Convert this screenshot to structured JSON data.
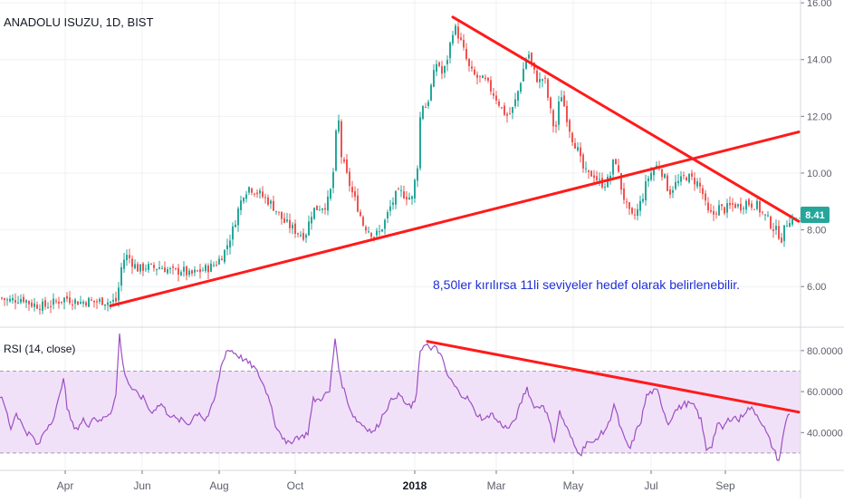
{
  "chart_data": [
    {
      "type": "candlestick",
      "symbol_title": "ANADOLU ISUZU, 1D, BIST",
      "ylim": [
        4.6,
        16.1
      ],
      "y_ticks": [
        "16.00",
        "14.00",
        "12.00",
        "10.00",
        "8.00",
        "6.00"
      ],
      "y_tick_values": [
        16,
        14,
        12,
        10,
        8,
        6
      ],
      "last_price_label": "8.41",
      "last_price": 8.41,
      "annotation": "8,50ler kırılırsa 11li seviyeler hedef olarak belirlenebilir.",
      "grid": true,
      "price_path": [
        [
          0,
          5.6
        ],
        [
          8,
          5.5
        ],
        [
          16,
          5.55
        ],
        [
          24,
          5.6
        ],
        [
          32,
          5.4
        ],
        [
          40,
          5.35
        ],
        [
          48,
          5.3
        ],
        [
          56,
          5.4
        ],
        [
          64,
          5.5
        ],
        [
          72,
          5.6
        ],
        [
          80,
          5.5
        ],
        [
          88,
          5.45
        ],
        [
          96,
          5.5
        ],
        [
          104,
          5.45
        ],
        [
          112,
          5.5
        ],
        [
          120,
          5.45
        ],
        [
          128,
          5.5
        ],
        [
          134,
          6.9
        ],
        [
          140,
          7.1
        ],
        [
          146,
          6.8
        ],
        [
          152,
          6.6
        ],
        [
          160,
          6.7
        ],
        [
          168,
          6.65
        ],
        [
          176,
          6.7
        ],
        [
          184,
          6.6
        ],
        [
          192,
          6.5
        ],
        [
          200,
          6.6
        ],
        [
          208,
          6.4
        ],
        [
          216,
          6.5
        ],
        [
          224,
          6.6
        ],
        [
          232,
          6.7
        ],
        [
          240,
          6.9
        ],
        [
          248,
          7.3
        ],
        [
          256,
          8.0
        ],
        [
          262,
          8.7
        ],
        [
          268,
          9.3
        ],
        [
          274,
          9.5
        ],
        [
          280,
          9.4
        ],
        [
          288,
          9.2
        ],
        [
          296,
          9.0
        ],
        [
          304,
          8.7
        ],
        [
          312,
          8.3
        ],
        [
          320,
          8.1
        ],
        [
          328,
          7.9
        ],
        [
          336,
          7.8
        ],
        [
          344,
          8.7
        ],
        [
          352,
          8.8
        ],
        [
          360,
          8.9
        ],
        [
          366,
          9.6
        ],
        [
          372,
          12.2
        ],
        [
          376,
          10.6
        ],
        [
          382,
          9.9
        ],
        [
          388,
          9.3
        ],
        [
          394,
          8.8
        ],
        [
          400,
          8.2
        ],
        [
          406,
          8.0
        ],
        [
          412,
          7.8
        ],
        [
          418,
          7.9
        ],
        [
          424,
          8.3
        ],
        [
          430,
          8.8
        ],
        [
          436,
          9.2
        ],
        [
          442,
          9.3
        ],
        [
          448,
          9.2
        ],
        [
          454,
          9.1
        ],
        [
          460,
          10.3
        ],
        [
          464,
          12.5
        ],
        [
          470,
          12.3
        ],
        [
          476,
          13.2
        ],
        [
          482,
          14.0
        ],
        [
          488,
          13.4
        ],
        [
          494,
          14.2
        ],
        [
          500,
          15.2
        ],
        [
          506,
          14.8
        ],
        [
          512,
          14.2
        ],
        [
          518,
          13.6
        ],
        [
          524,
          13.4
        ],
        [
          530,
          13.3
        ],
        [
          536,
          13.2
        ],
        [
          542,
          12.9
        ],
        [
          548,
          12.6
        ],
        [
          554,
          12.2
        ],
        [
          560,
          12.0
        ],
        [
          566,
          12.3
        ],
        [
          572,
          13.0
        ],
        [
          578,
          13.8
        ],
        [
          582,
          14.3
        ],
        [
          588,
          13.6
        ],
        [
          594,
          13.2
        ],
        [
          600,
          13.4
        ],
        [
          606,
          12.3
        ],
        [
          612,
          11.4
        ],
        [
          618,
          12.9
        ],
        [
          624,
          12.1
        ],
        [
          630,
          11.3
        ],
        [
          636,
          10.9
        ],
        [
          642,
          10.2
        ],
        [
          648,
          9.9
        ],
        [
          654,
          10.0
        ],
        [
          660,
          9.7
        ],
        [
          666,
          9.6
        ],
        [
          672,
          9.8
        ],
        [
          678,
          10.6
        ],
        [
          684,
          9.6
        ],
        [
          690,
          8.9
        ],
        [
          696,
          8.4
        ],
        [
          702,
          8.6
        ],
        [
          708,
          9.1
        ],
        [
          714,
          9.8
        ],
        [
          720,
          10.1
        ],
        [
          726,
          10.3
        ],
        [
          732,
          9.9
        ],
        [
          738,
          9.3
        ],
        [
          744,
          9.6
        ],
        [
          750,
          9.7
        ],
        [
          756,
          9.9
        ],
        [
          762,
          9.8
        ],
        [
          768,
          9.7
        ],
        [
          774,
          9.4
        ],
        [
          780,
          8.6
        ],
        [
          786,
          8.5
        ],
        [
          792,
          8.8
        ],
        [
          798,
          8.7
        ],
        [
          804,
          8.8
        ],
        [
          810,
          8.9
        ],
        [
          816,
          8.8
        ],
        [
          822,
          9.0
        ],
        [
          828,
          8.9
        ],
        [
          834,
          8.9
        ],
        [
          840,
          8.6
        ],
        [
          846,
          8.4
        ],
        [
          852,
          8.1
        ],
        [
          858,
          7.9
        ],
        [
          862,
          7.7
        ],
        [
          866,
          8.1
        ],
        [
          870,
          8.4
        ],
        [
          874,
          8.41
        ]
      ],
      "trendlines": [
        {
          "from": [
            122,
            5.32
          ],
          "to": [
            882,
            11.45
          ]
        },
        {
          "from": [
            500,
            15.5
          ],
          "to": [
            882,
            8.3
          ]
        }
      ]
    },
    {
      "type": "line",
      "indicator_title": "RSI (14, close)",
      "ylim": [
        22,
        91
      ],
      "y_ticks": [
        "80.0000",
        "60.0000",
        "40.0000"
      ],
      "y_tick_values": [
        80,
        60,
        40
      ],
      "band": [
        30,
        70
      ],
      "rsi_path": [
        [
          0,
          58
        ],
        [
          6,
          52
        ],
        [
          12,
          42
        ],
        [
          18,
          50
        ],
        [
          24,
          44
        ],
        [
          30,
          40
        ],
        [
          36,
          38
        ],
        [
          42,
          33
        ],
        [
          48,
          40
        ],
        [
          54,
          44
        ],
        [
          60,
          48
        ],
        [
          66,
          58
        ],
        [
          70,
          68
        ],
        [
          74,
          52
        ],
        [
          80,
          44
        ],
        [
          86,
          42
        ],
        [
          92,
          46
        ],
        [
          98,
          44
        ],
        [
          104,
          48
        ],
        [
          110,
          45
        ],
        [
          116,
          48
        ],
        [
          122,
          50
        ],
        [
          128,
          58
        ],
        [
          132,
          88
        ],
        [
          136,
          72
        ],
        [
          142,
          64
        ],
        [
          148,
          60
        ],
        [
          154,
          58
        ],
        [
          160,
          56
        ],
        [
          166,
          50
        ],
        [
          172,
          52
        ],
        [
          178,
          54
        ],
        [
          184,
          50
        ],
        [
          190,
          48
        ],
        [
          196,
          46
        ],
        [
          202,
          46
        ],
        [
          208,
          44
        ],
        [
          214,
          48
        ],
        [
          220,
          50
        ],
        [
          226,
          46
        ],
        [
          232,
          50
        ],
        [
          238,
          58
        ],
        [
          244,
          72
        ],
        [
          250,
          80
        ],
        [
          256,
          80
        ],
        [
          262,
          78
        ],
        [
          268,
          76
        ],
        [
          274,
          74
        ],
        [
          280,
          72
        ],
        [
          286,
          68
        ],
        [
          292,
          62
        ],
        [
          298,
          56
        ],
        [
          304,
          44
        ],
        [
          310,
          40
        ],
        [
          316,
          34
        ],
        [
          322,
          36
        ],
        [
          328,
          38
        ],
        [
          334,
          38
        ],
        [
          340,
          40
        ],
        [
          346,
          56
        ],
        [
          352,
          56
        ],
        [
          358,
          58
        ],
        [
          364,
          60
        ],
        [
          370,
          86
        ],
        [
          376,
          66
        ],
        [
          382,
          58
        ],
        [
          388,
          50
        ],
        [
          394,
          46
        ],
        [
          400,
          44
        ],
        [
          406,
          42
        ],
        [
          412,
          40
        ],
        [
          418,
          44
        ],
        [
          424,
          50
        ],
        [
          430,
          54
        ],
        [
          436,
          58
        ],
        [
          442,
          58
        ],
        [
          448,
          54
        ],
        [
          454,
          52
        ],
        [
          460,
          58
        ],
        [
          464,
          80
        ],
        [
          470,
          84
        ],
        [
          476,
          80
        ],
        [
          482,
          82
        ],
        [
          488,
          76
        ],
        [
          494,
          68
        ],
        [
          500,
          64
        ],
        [
          506,
          60
        ],
        [
          512,
          58
        ],
        [
          518,
          56
        ],
        [
          524,
          50
        ],
        [
          530,
          48
        ],
        [
          536,
          46
        ],
        [
          542,
          50
        ],
        [
          548,
          46
        ],
        [
          554,
          44
        ],
        [
          560,
          42
        ],
        [
          566,
          44
        ],
        [
          572,
          50
        ],
        [
          578,
          58
        ],
        [
          582,
          62
        ],
        [
          588,
          54
        ],
        [
          594,
          52
        ],
        [
          600,
          54
        ],
        [
          606,
          46
        ],
        [
          612,
          36
        ],
        [
          618,
          50
        ],
        [
          624,
          44
        ],
        [
          630,
          38
        ],
        [
          636,
          32
        ],
        [
          642,
          30
        ],
        [
          648,
          36
        ],
        [
          654,
          34
        ],
        [
          660,
          38
        ],
        [
          666,
          40
        ],
        [
          672,
          44
        ],
        [
          678,
          54
        ],
        [
          684,
          44
        ],
        [
          690,
          36
        ],
        [
          696,
          32
        ],
        [
          702,
          40
        ],
        [
          708,
          46
        ],
        [
          714,
          58
        ],
        [
          720,
          60
        ],
        [
          726,
          60
        ],
        [
          732,
          52
        ],
        [
          738,
          44
        ],
        [
          744,
          50
        ],
        [
          750,
          52
        ],
        [
          756,
          54
        ],
        [
          762,
          54
        ],
        [
          768,
          52
        ],
        [
          774,
          46
        ],
        [
          780,
          32
        ],
        [
          786,
          34
        ],
        [
          792,
          44
        ],
        [
          798,
          42
        ],
        [
          804,
          46
        ],
        [
          810,
          48
        ],
        [
          816,
          46
        ],
        [
          822,
          50
        ],
        [
          828,
          52
        ],
        [
          834,
          50
        ],
        [
          840,
          46
        ],
        [
          846,
          40
        ],
        [
          852,
          34
        ],
        [
          856,
          30
        ],
        [
          860,
          26
        ],
        [
          864,
          36
        ],
        [
          868,
          46
        ],
        [
          872,
          50
        ]
      ],
      "trendlines": [
        {
          "from": [
            472,
            84.5
          ],
          "to": [
            882,
            50
          ]
        }
      ]
    }
  ],
  "x_axis": {
    "labels": [
      {
        "text": "Apr",
        "bold": false
      },
      {
        "text": "Jun",
        "bold": false
      },
      {
        "text": "Aug",
        "bold": false
      },
      {
        "text": "Oct",
        "bold": false
      },
      {
        "text": "2018",
        "bold": true
      },
      {
        "text": "Mar",
        "bold": false
      },
      {
        "text": "May",
        "bold": false
      },
      {
        "text": "Jul",
        "bold": false
      },
      {
        "text": "Sep",
        "bold": false
      }
    ]
  },
  "colors": {
    "up": "#26a69a",
    "down": "#ef5350",
    "trend": "#ff1a1a",
    "rsi": "#9c4fc4",
    "rsi_band": "#f1e1f8",
    "grid": "#eef0f3",
    "annotation": "#1f2fd6",
    "axis_text": "#5d606b",
    "price_badge": "#26a69a"
  }
}
